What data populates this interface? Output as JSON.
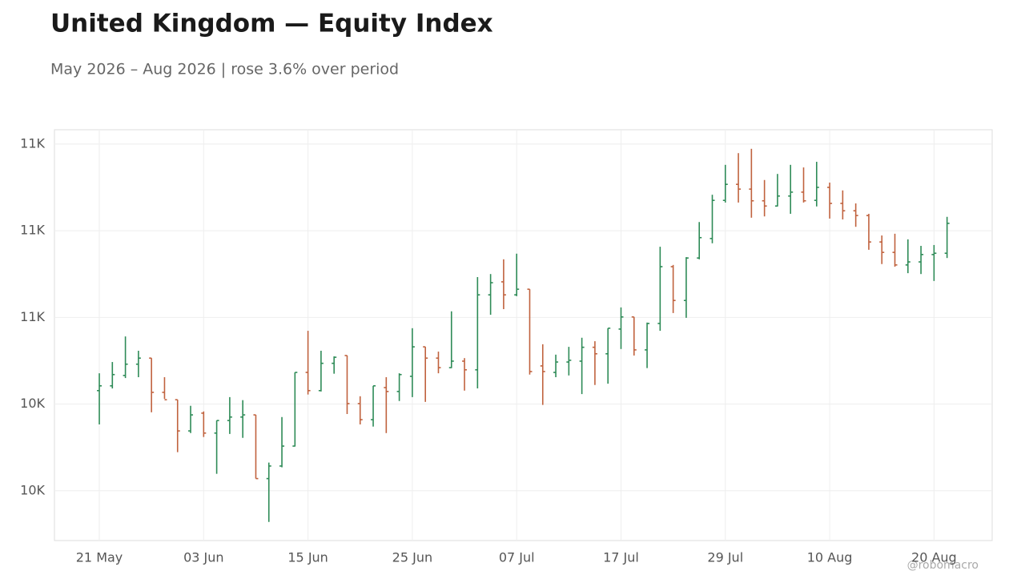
{
  "chart_data": {
    "type": "ohlc",
    "title": "United Kingdom — Equity Index",
    "subtitle": "May 2026 – Aug 2026 | rose 3.6% over period",
    "watermark": "@robomacro",
    "categories": [
      "21 May",
      null,
      null,
      null,
      null,
      null,
      null,
      null,
      "03 Jun",
      null,
      null,
      null,
      null,
      null,
      null,
      null,
      "15 Jun",
      null,
      null,
      null,
      null,
      null,
      null,
      null,
      "25 Jun",
      null,
      null,
      null,
      null,
      null,
      null,
      null,
      "07 Jul",
      null,
      null,
      null,
      null,
      null,
      null,
      null,
      "17 Jul",
      null,
      null,
      null,
      null,
      null,
      null,
      null,
      "29 Jul",
      null,
      null,
      null,
      null,
      null,
      null,
      null,
      "10 Aug",
      null,
      null,
      null,
      null,
      null,
      null,
      null,
      "20 Aug",
      null
    ],
    "open": [
      10431,
      10442,
      10466,
      10492,
      10506,
      10427,
      10410,
      10338,
      10379,
      10333,
      10362,
      10370,
      10375,
      10228,
      10257,
      10303,
      10473,
      10431,
      10494,
      10512,
      10401,
      10364,
      10438,
      10429,
      10464,
      10532,
      10506,
      10484,
      10499,
      10479,
      10652,
      10682,
      10652,
      10665,
      10488,
      10473,
      10497,
      10499,
      10531,
      10516,
      10573,
      10601,
      10525,
      10586,
      10717,
      10639,
      10737,
      10782,
      10870,
      10907,
      10896,
      10869,
      10857,
      10880,
      10889,
      10870,
      10900,
      10863,
      10846,
      10835,
      10774,
      10750,
      10721,
      10728,
      10745,
      10748
    ],
    "high": [
      10471,
      10497,
      10556,
      10523,
      10506,
      10462,
      10410,
      10396,
      10383,
      10362,
      10416,
      10409,
      10375,
      10265,
      10370,
      10473,
      10569,
      10523,
      10510,
      10512,
      10418,
      10442,
      10462,
      10471,
      10575,
      10532,
      10521,
      10614,
      10506,
      10693,
      10700,
      10734,
      10747,
      10665,
      10538,
      10514,
      10532,
      10553,
      10545,
      10575,
      10623,
      10601,
      10588,
      10763,
      10721,
      10739,
      10820,
      10883,
      10952,
      10979,
      10989,
      10917,
      10931,
      10952,
      10946,
      10959,
      10911,
      10893,
      10863,
      10839,
      10789,
      10793,
      10780,
      10765,
      10767,
      10832
    ],
    "low": [
      10353,
      10436,
      10460,
      10462,
      10381,
      10412,
      10289,
      10333,
      10324,
      10239,
      10331,
      10322,
      10228,
      10128,
      10254,
      10302,
      10422,
      10429,
      10470,
      10377,
      10353,
      10348,
      10333,
      10407,
      10416,
      10405,
      10471,
      10483,
      10431,
      10436,
      10606,
      10619,
      10649,
      10468,
      10398,
      10462,
      10466,
      10423,
      10444,
      10447,
      10527,
      10512,
      10483,
      10569,
      10610,
      10599,
      10734,
      10771,
      10865,
      10865,
      10830,
      10833,
      10856,
      10839,
      10865,
      10856,
      10828,
      10826,
      10809,
      10756,
      10723,
      10717,
      10702,
      10700,
      10684,
      10737
    ],
    "close": [
      10442,
      10468,
      10492,
      10506,
      10427,
      10410,
      10338,
      10375,
      10333,
      10362,
      10370,
      10375,
      10228,
      10257,
      10303,
      10473,
      10431,
      10494,
      10508,
      10401,
      10364,
      10442,
      10429,
      10468,
      10532,
      10506,
      10484,
      10499,
      10479,
      10652,
      10680,
      10652,
      10665,
      10475,
      10475,
      10497,
      10501,
      10531,
      10516,
      10575,
      10601,
      10525,
      10586,
      10717,
      10639,
      10737,
      10784,
      10870,
      10907,
      10896,
      10869,
      10857,
      10880,
      10889,
      10869,
      10900,
      10863,
      10846,
      10835,
      10774,
      10750,
      10721,
      10728,
      10745,
      10748,
      10817
    ],
    "up_color": "#2e8b57",
    "down_color": "#c0623e",
    "ylim": [
      10085,
      11033
    ],
    "yticks": [
      {
        "value": 10200,
        "label": "10K"
      },
      {
        "value": 10400,
        "label": "10K"
      },
      {
        "value": 10600,
        "label": "11K"
      },
      {
        "value": 10800,
        "label": "11K"
      },
      {
        "value": 11000,
        "label": "11K"
      }
    ],
    "grid": true
  }
}
